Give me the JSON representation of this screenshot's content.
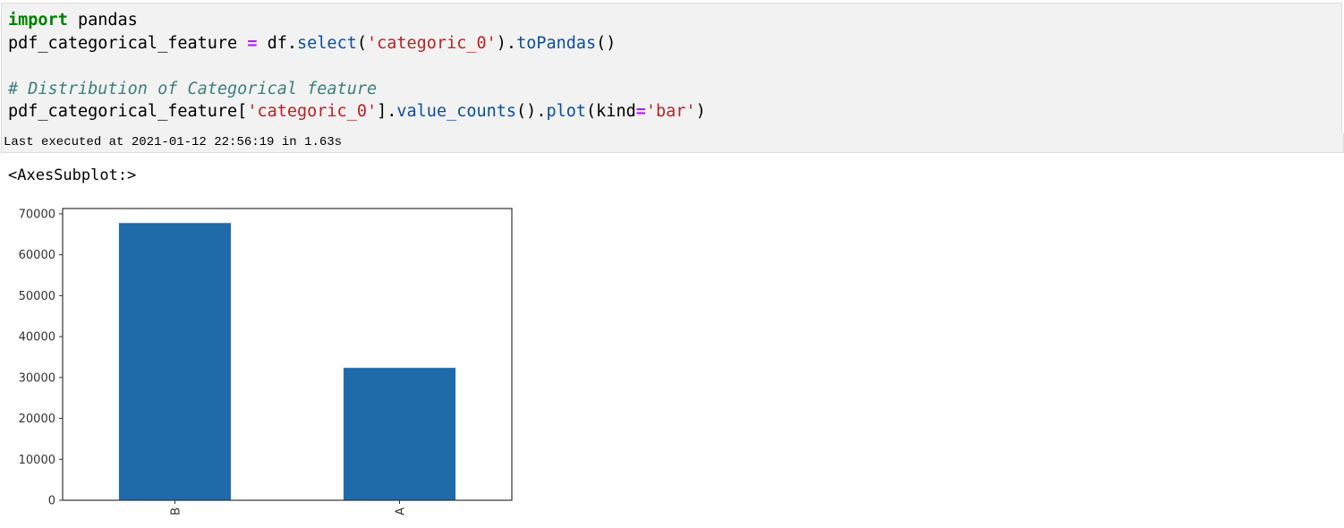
{
  "cell": {
    "code_lines": [
      [
        {
          "t": "import",
          "c": "kw"
        },
        {
          "t": " pandas"
        }
      ],
      [
        {
          "t": "pdf_categorical_feature "
        },
        {
          "t": "=",
          "c": "op"
        },
        {
          "t": " df."
        },
        {
          "t": "select",
          "c": "fn"
        },
        {
          "t": "("
        },
        {
          "t": "'categoric_0'",
          "c": "str"
        },
        {
          "t": ")."
        },
        {
          "t": "toPandas",
          "c": "fn"
        },
        {
          "t": "()"
        }
      ],
      [],
      [
        {
          "t": "# Distribution of Categorical feature",
          "c": "cm"
        }
      ],
      [
        {
          "t": "pdf_categorical_feature["
        },
        {
          "t": "'categoric_0'",
          "c": "str"
        },
        {
          "t": "]."
        },
        {
          "t": "value_counts",
          "c": "fn"
        },
        {
          "t": "()."
        },
        {
          "t": "plot",
          "c": "fn"
        },
        {
          "t": "(kind"
        },
        {
          "t": "=",
          "c": "op"
        },
        {
          "t": "'bar'",
          "c": "str"
        },
        {
          "t": ")"
        }
      ]
    ],
    "exec_info": "Last executed at 2021-01-12 22:56:19 in 1.63s",
    "output_text": "<AxesSubplot:>"
  },
  "chart_data": {
    "type": "bar",
    "categories": [
      "B",
      "A"
    ],
    "values": [
      67800,
      32400
    ],
    "title": "",
    "xlabel": "",
    "ylabel": "",
    "ylim": [
      0,
      71300
    ],
    "yticks": [
      0,
      10000,
      20000,
      30000,
      40000,
      50000,
      60000,
      70000
    ],
    "xtick_rotation": 90,
    "grid": false,
    "bar_color": "#1f6aa8"
  }
}
